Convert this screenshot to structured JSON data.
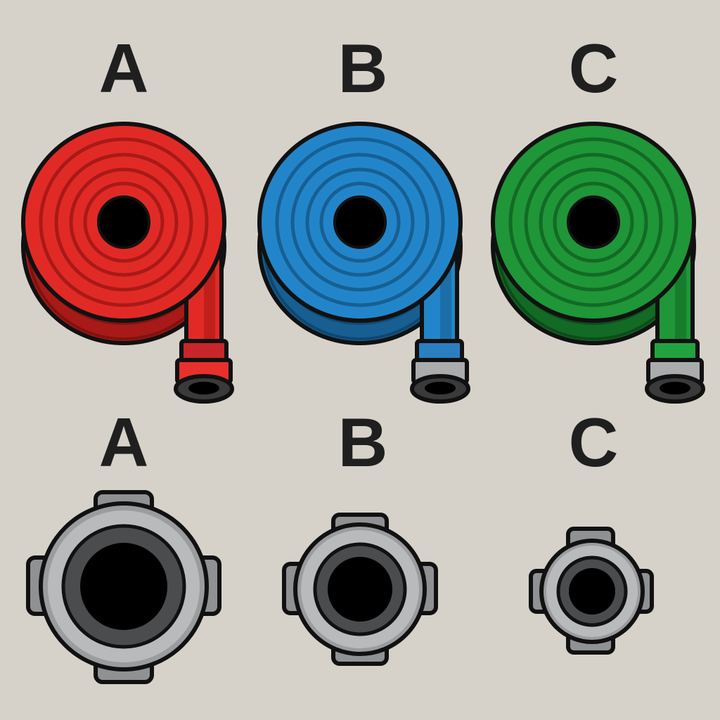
{
  "hoses": [
    {
      "label": "A",
      "color": "#e12a26",
      "dark": "#a81a17",
      "coupling": "red"
    },
    {
      "label": "B",
      "color": "#2385c9",
      "dark": "#175f93",
      "coupling": "gray"
    },
    {
      "label": "C",
      "color": "#1f9638",
      "dark": "#136a25",
      "coupling": "gray"
    }
  ],
  "couplings": [
    {
      "label": "A",
      "size": "large"
    },
    {
      "label": "B",
      "size": "medium"
    },
    {
      "label": "C",
      "size": "small"
    }
  ],
  "colors": {
    "background": "#d6d2ca",
    "outline": "#111111",
    "metal_light": "#b9babb",
    "metal_mid": "#8f9193",
    "metal_dark": "#4a4c4e"
  }
}
